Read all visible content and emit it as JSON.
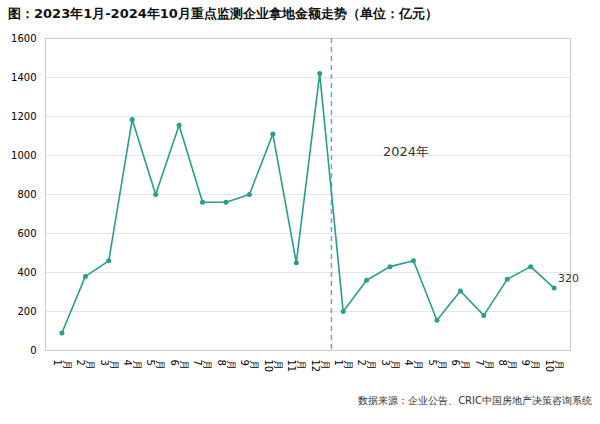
{
  "chart_data": {
    "type": "line",
    "title": "图：2023年1月-2024年10月重点监测企业拿地金额走势（单位：亿元）",
    "caption": "数据来源：企业公告、CRIC中国房地产决策咨询系统",
    "categories": [
      "月\n1",
      "月\n2",
      "月\n3",
      "月\n4",
      "月\n5",
      "月\n6",
      "月\n7",
      "月\n8",
      "月\n9",
      "月\n10",
      "月\n11",
      "月\n12",
      "月\n1",
      "月\n2",
      "月\n3",
      "月\n4",
      "月\n5",
      "月\n6",
      "月\n7",
      "月\n8",
      "月\n9",
      "月\n10"
    ],
    "values": [
      90,
      380,
      460,
      1185,
      800,
      1155,
      760,
      760,
      800,
      1110,
      450,
      1420,
      200,
      360,
      430,
      460,
      155,
      305,
      180,
      365,
      430,
      320
    ],
    "color": "#2a9d8f",
    "marker": "circle",
    "line_style": "solid",
    "annotations": [
      "2024年",
      "320"
    ],
    "ylim": [
      0,
      1600
    ],
    "yticks": [
      0,
      200,
      400,
      600,
      800,
      1000,
      1200,
      1400,
      1600
    ],
    "grid": true
  }
}
